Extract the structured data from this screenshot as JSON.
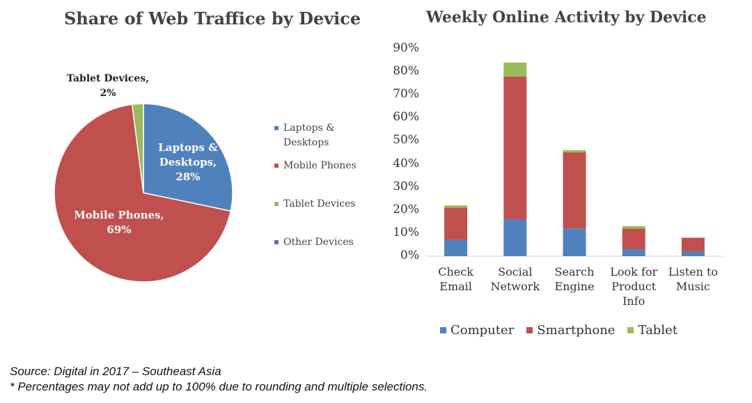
{
  "colors": {
    "laptops": "#4f81bd",
    "mobile": "#c0504d",
    "tablet": "#9bbb59",
    "other": "#8064a2",
    "computer": "#4f81bd",
    "smartphone": "#c0504d",
    "tablet_bar": "#9bbb59"
  },
  "chart_data": [
    {
      "type": "pie",
      "title": "Share of Web Traffice by Device",
      "slices": [
        {
          "name": "Laptops & Desktops",
          "value": 28,
          "label_line1": "Laptops &",
          "label_line2": "Desktops,",
          "label_line3": "28%",
          "color_key": "laptops"
        },
        {
          "name": "Mobile Phones",
          "value": 69,
          "label_line1": "Mobile Phones,",
          "label_line2": "69%",
          "color_key": "mobile"
        },
        {
          "name": "Tablet Devices",
          "value": 2,
          "label_line1": "Tablet Devices,",
          "label_line2": "2%",
          "color_key": "tablet"
        },
        {
          "name": "Other Devices",
          "value": 0,
          "color_key": "other"
        }
      ],
      "legend": {
        "placement": "right",
        "items": [
          {
            "line1": "Laptops &",
            "line2": "Desktops",
            "color_key": "laptops"
          },
          {
            "line1": "Mobile Phones",
            "line2": "",
            "color_key": "mobile"
          },
          {
            "line1": "Tablet Devices",
            "line2": "",
            "color_key": "tablet"
          },
          {
            "line1": "Other Devices",
            "line2": "",
            "color_key": "other"
          }
        ]
      }
    },
    {
      "type": "bar",
      "stacked": true,
      "title": "Weekly Online Activity by Device",
      "categories": [
        "Check\nEmail",
        "Social\nNetwork",
        "Search\nEngine",
        "Look for\nProduct\nInfo",
        "Listen to\nMusic"
      ],
      "series": [
        {
          "name": "Computer",
          "values": [
            7,
            16,
            12,
            3,
            2
          ],
          "color_key": "computer"
        },
        {
          "name": "Smartphone",
          "values": [
            14,
            62,
            33,
            9,
            6
          ],
          "color_key": "smartphone"
        },
        {
          "name": "Tablet",
          "values": [
            1,
            6,
            1,
            1,
            0
          ],
          "color_key": "tablet_bar"
        }
      ],
      "ylim": [
        0,
        90
      ],
      "yticks": [
        "0%",
        "10%",
        "20%",
        "30%",
        "40%",
        "50%",
        "60%",
        "70%",
        "80%",
        "90%"
      ],
      "grid": false,
      "legend_placement": "bottom"
    }
  ],
  "footnotes": {
    "source": "Source: Digital in 2017 – Southeast Asia",
    "rounding": "* Percentages may not add up to 100% due to rounding and multiple selections."
  }
}
